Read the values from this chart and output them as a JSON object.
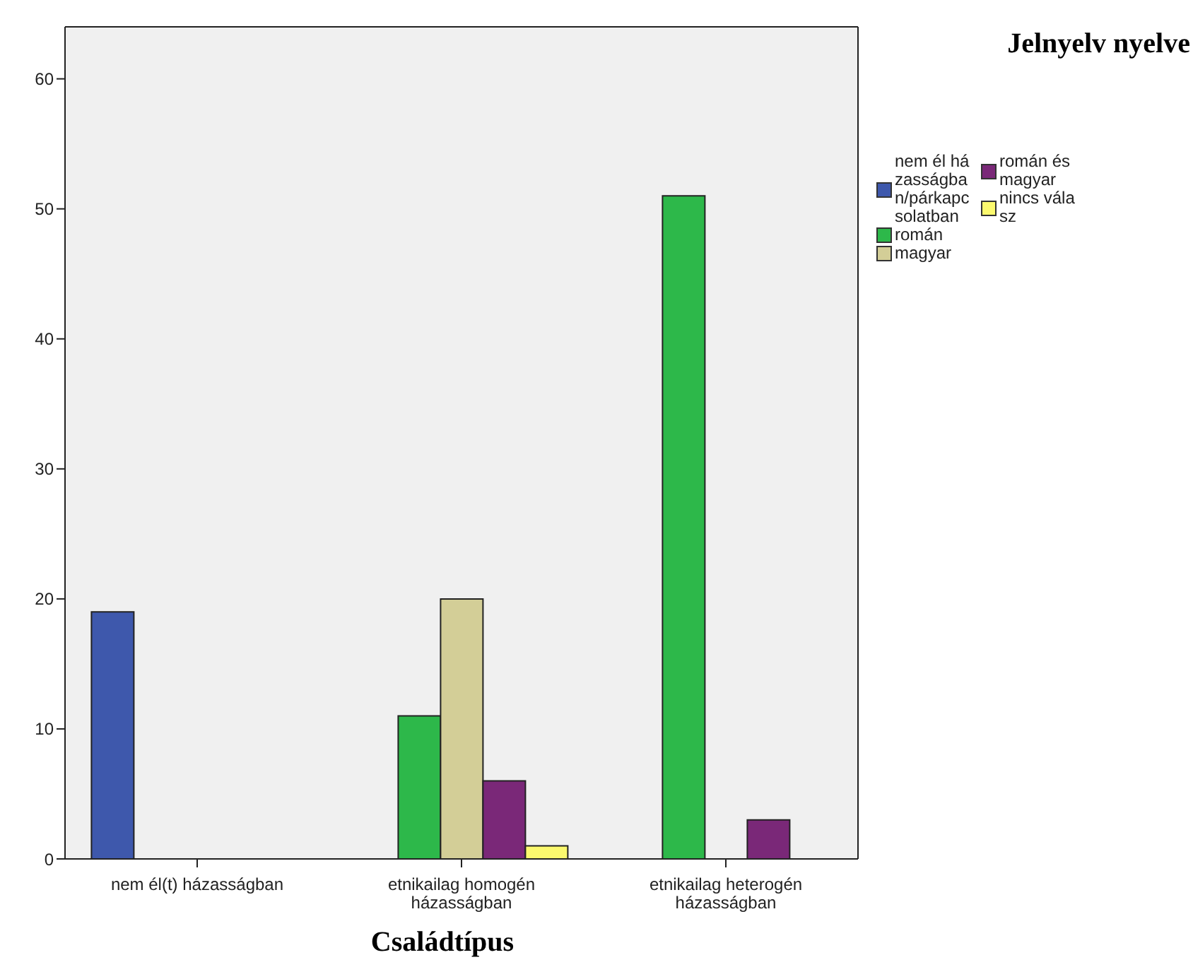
{
  "chart_data": {
    "type": "bar",
    "xlabel": "Családtípus",
    "legend_title": "Jelnyelv nyelve",
    "categories": [
      "nem él(t) házasságban",
      "etnikailag homogén házasságban",
      "etnikailag heterogén házasságban"
    ],
    "series": [
      {
        "name": "nem él házasságban/párkapcsolatban",
        "color": "#3e58ac",
        "values": [
          19,
          null,
          null
        ]
      },
      {
        "name": "román",
        "color": "#2db84a",
        "values": [
          null,
          11,
          51
        ]
      },
      {
        "name": "magyar",
        "color": "#d3ce97",
        "values": [
          null,
          20,
          null
        ]
      },
      {
        "name": "román és magyar",
        "color": "#7a2878",
        "values": [
          null,
          6,
          3
        ]
      },
      {
        "name": "nincs válasz",
        "color": "#fbf96e",
        "values": [
          null,
          1,
          null
        ]
      }
    ],
    "ylim": [
      0,
      64
    ],
    "yticks": [
      0,
      10,
      20,
      30,
      40,
      50,
      60
    ],
    "grid": false,
    "legend": "right"
  }
}
